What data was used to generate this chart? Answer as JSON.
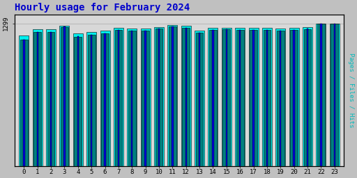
{
  "title": "Hourly usage for February 2024",
  "title_color": "#0000cc",
  "title_fontsize": 10,
  "hours": [
    0,
    1,
    2,
    3,
    4,
    5,
    6,
    7,
    8,
    9,
    10,
    11,
    12,
    13,
    14,
    15,
    16,
    17,
    18,
    19,
    20,
    21,
    22,
    23
  ],
  "hits": [
    1150,
    1220,
    1220,
    1270,
    1180,
    1195,
    1210,
    1240,
    1235,
    1235,
    1250,
    1270,
    1260,
    1215,
    1240,
    1245,
    1240,
    1240,
    1240,
    1235,
    1240,
    1250,
    1299,
    1299
  ],
  "files": [
    1190,
    1245,
    1248,
    1280,
    1210,
    1220,
    1235,
    1255,
    1250,
    1252,
    1265,
    1285,
    1275,
    1235,
    1255,
    1260,
    1255,
    1255,
    1255,
    1250,
    1255,
    1265,
    1299,
    1299
  ],
  "pages": [
    1150,
    1220,
    1222,
    1265,
    1175,
    1195,
    1210,
    1238,
    1232,
    1234,
    1250,
    1268,
    1260,
    1215,
    1238,
    1243,
    1238,
    1238,
    1238,
    1233,
    1238,
    1248,
    1299,
    1299
  ],
  "hits_color": "#0000dd",
  "files_color": "#00eeee",
  "pages_color": "#008080",
  "bar_edge_color": "#000000",
  "bg_color": "#c0c0c0",
  "plot_bg_color": "#d8d8d8",
  "ylabel_right": "Pages / Files / Hits",
  "ymax": 1299,
  "ylim_max": 1380
}
